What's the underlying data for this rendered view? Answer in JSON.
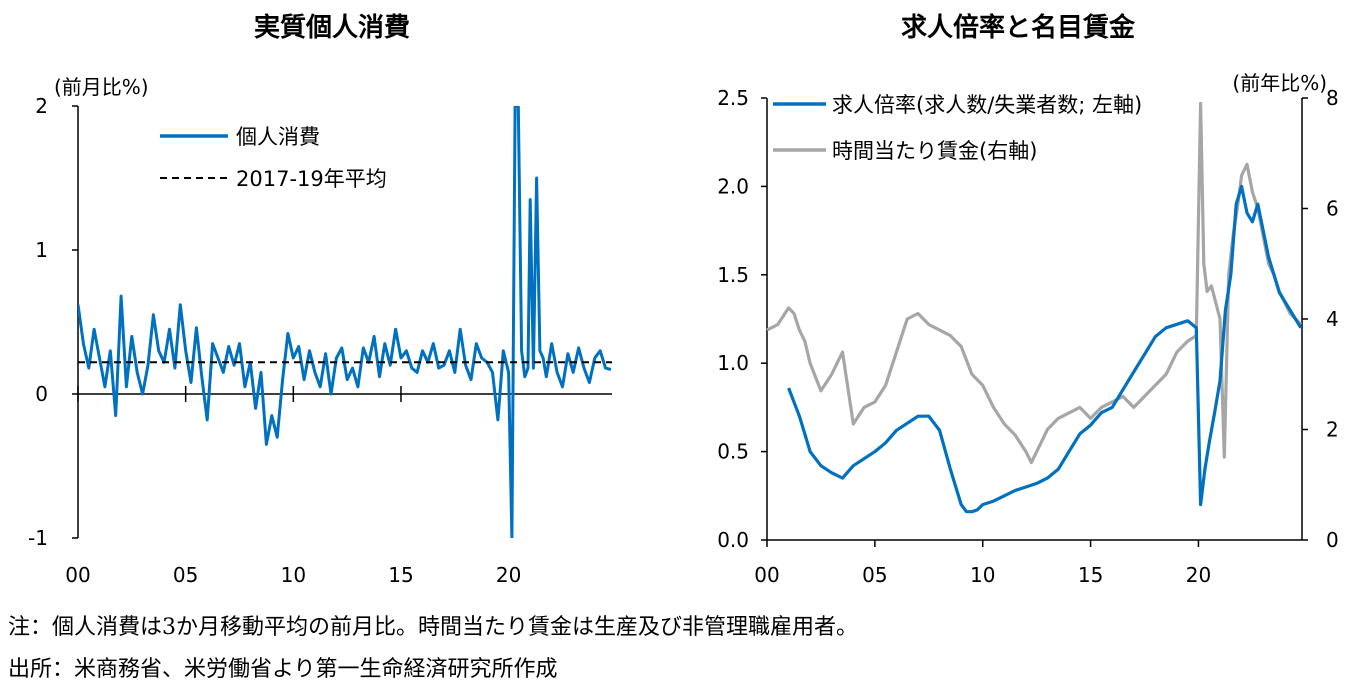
{
  "charts": [
    {
      "title": "実質個人消費",
      "ylabel": "(前月比%)",
      "yticks": [
        "2",
        "1",
        "0",
        "-1"
      ],
      "xticks": [
        "00",
        "05",
        "10",
        "15",
        "20"
      ]
    },
    {
      "title": "求人倍率と名目賃金",
      "ylabel_left": "",
      "ylabel_right": "(前年比%)",
      "yticks_left": [
        "2.5",
        "2.0",
        "1.5",
        "1.0",
        "0.5",
        "0.0"
      ],
      "yticks_right": [
        "8",
        "6",
        "4",
        "2",
        "0"
      ],
      "xticks": [
        "00",
        "05",
        "10",
        "15",
        "20"
      ]
    }
  ],
  "legend": {
    "consumption": "個人消費",
    "average": "2017-19年平均",
    "ratio": "求人倍率(求人数/失業者数; 左軸)",
    "wage": "時間当たり賃金(右軸)"
  },
  "notes": [
    "注：個人消費は3か月移動平均の前月比。時間当たり賃金は生産及び非管理職雇用者。",
    "出所：米商務省、米労働省より第一生命経済研究所作成"
  ],
  "colors": {
    "blue": "#0070C0",
    "gray": "#A6A6A6",
    "black": "#000000"
  },
  "chart_data": [
    {
      "type": "line",
      "title": "実質個人消費",
      "ylabel": "(前月比%)",
      "ylim": [
        -1,
        2
      ],
      "xlim": [
        2000,
        2024.8
      ],
      "series": [
        {
          "name": "個人消費",
          "color": "#0070C0",
          "x": [
            2000.0,
            2000.25,
            2000.5,
            2000.75,
            2001.0,
            2001.25,
            2001.5,
            2001.75,
            2002.0,
            2002.25,
            2002.5,
            2002.75,
            2003.0,
            2003.25,
            2003.5,
            2003.75,
            2004.0,
            2004.25,
            2004.5,
            2004.75,
            2005.0,
            2005.25,
            2005.5,
            2005.75,
            2006.0,
            2006.25,
            2006.5,
            2006.75,
            2007.0,
            2007.25,
            2007.5,
            2007.75,
            2008.0,
            2008.25,
            2008.5,
            2008.75,
            2009.0,
            2009.25,
            2009.5,
            2009.75,
            2010.0,
            2010.25,
            2010.5,
            2010.75,
            2011.0,
            2011.25,
            2011.5,
            2011.75,
            2012.0,
            2012.25,
            2012.5,
            2012.75,
            2013.0,
            2013.25,
            2013.5,
            2013.75,
            2014.0,
            2014.25,
            2014.5,
            2014.75,
            2015.0,
            2015.25,
            2015.5,
            2015.75,
            2016.0,
            2016.25,
            2016.5,
            2016.75,
            2017.0,
            2017.25,
            2017.5,
            2017.75,
            2018.0,
            2018.25,
            2018.5,
            2018.75,
            2019.0,
            2019.25,
            2019.5,
            2019.75,
            2020.0,
            2020.15,
            2020.3,
            2020.45,
            2020.6,
            2020.75,
            2020.9,
            2021.0,
            2021.15,
            2021.3,
            2021.45,
            2021.6,
            2021.75,
            2022.0,
            2022.25,
            2022.5,
            2022.75,
            2023.0,
            2023.25,
            2023.5,
            2023.75,
            2024.0,
            2024.25,
            2024.5,
            2024.75
          ],
          "y": [
            0.62,
            0.35,
            0.18,
            0.45,
            0.25,
            0.05,
            0.3,
            -0.15,
            0.68,
            0.05,
            0.4,
            0.15,
            0.0,
            0.2,
            0.55,
            0.3,
            0.22,
            0.45,
            0.18,
            0.62,
            0.3,
            0.08,
            0.46,
            0.12,
            -0.18,
            0.35,
            0.25,
            0.15,
            0.33,
            0.2,
            0.35,
            0.05,
            0.22,
            -0.1,
            0.15,
            -0.35,
            -0.15,
            -0.3,
            0.1,
            0.42,
            0.25,
            0.33,
            0.1,
            0.3,
            0.15,
            0.05,
            0.28,
            0.0,
            0.25,
            0.32,
            0.1,
            0.18,
            0.05,
            0.32,
            0.22,
            0.4,
            0.12,
            0.35,
            0.2,
            0.45,
            0.25,
            0.3,
            0.18,
            0.15,
            0.3,
            0.22,
            0.35,
            0.18,
            0.2,
            0.3,
            0.15,
            0.45,
            0.2,
            0.1,
            0.35,
            0.25,
            0.22,
            0.15,
            -0.18,
            0.3,
            0.15,
            -1.0,
            2.0,
            2.0,
            0.3,
            0.12,
            0.18,
            1.35,
            0.18,
            1.5,
            0.3,
            0.25,
            0.12,
            0.35,
            0.15,
            0.05,
            0.28,
            0.15,
            0.32,
            0.18,
            0.08,
            0.25,
            0.3,
            0.18,
            0.17
          ]
        },
        {
          "name": "2017-19年平均",
          "color": "#000000",
          "x": [
            2000.0,
            2024.8
          ],
          "y": [
            0.22,
            0.22
          ]
        }
      ]
    },
    {
      "type": "line",
      "title": "求人倍率と名目賃金",
      "ylabel_right": "(前年比%)",
      "ylim_left": [
        0,
        2.5
      ],
      "ylim_right": [
        0,
        8
      ],
      "xlim": [
        2000,
        2024.8
      ],
      "series": [
        {
          "name": "求人倍率(求人数/失業者数; 左軸)",
          "axis": "left",
          "color": "#0070C0",
          "x": [
            2001.0,
            2001.25,
            2001.5,
            2001.75,
            2002.0,
            2002.5,
            2003.0,
            2003.5,
            2004.0,
            2004.5,
            2005.0,
            2005.5,
            2006.0,
            2006.5,
            2007.0,
            2007.5,
            2008.0,
            2008.5,
            2009.0,
            2009.25,
            2009.5,
            2009.75,
            2010.0,
            2010.5,
            2011.0,
            2011.5,
            2012.0,
            2012.5,
            2013.0,
            2013.5,
            2014.0,
            2014.5,
            2015.0,
            2015.5,
            2016.0,
            2016.5,
            2017.0,
            2017.5,
            2018.0,
            2018.5,
            2019.0,
            2019.5,
            2019.9,
            2020.1,
            2020.3,
            2020.5,
            2020.75,
            2021.0,
            2021.25,
            2021.5,
            2021.75,
            2022.0,
            2022.25,
            2022.5,
            2022.75,
            2023.0,
            2023.25,
            2023.5,
            2023.75,
            2024.0,
            2024.25,
            2024.5,
            2024.75
          ],
          "y": [
            0.86,
            0.78,
            0.7,
            0.6,
            0.5,
            0.42,
            0.38,
            0.35,
            0.42,
            0.46,
            0.5,
            0.55,
            0.62,
            0.66,
            0.7,
            0.7,
            0.62,
            0.4,
            0.2,
            0.16,
            0.16,
            0.17,
            0.2,
            0.22,
            0.25,
            0.28,
            0.3,
            0.32,
            0.35,
            0.4,
            0.5,
            0.6,
            0.65,
            0.72,
            0.75,
            0.85,
            0.95,
            1.05,
            1.15,
            1.2,
            1.22,
            1.24,
            1.2,
            0.2,
            0.4,
            0.55,
            0.72,
            0.9,
            1.3,
            1.5,
            1.9,
            2.0,
            1.85,
            1.8,
            1.9,
            1.75,
            1.6,
            1.5,
            1.4,
            1.35,
            1.3,
            1.25,
            1.2
          ]
        },
        {
          "name": "時間当たり賃金(右軸)",
          "axis": "right",
          "color": "#A6A6A6",
          "x": [
            2000.0,
            2000.5,
            2001.0,
            2001.25,
            2001.5,
            2001.75,
            2002.0,
            2002.5,
            2003.0,
            2003.5,
            2004.0,
            2004.5,
            2005.0,
            2005.5,
            2006.0,
            2006.5,
            2007.0,
            2007.5,
            2008.0,
            2008.5,
            2009.0,
            2009.5,
            2010.0,
            2010.5,
            2011.0,
            2011.5,
            2012.0,
            2012.25,
            2012.5,
            2012.75,
            2013.0,
            2013.5,
            2014.0,
            2014.5,
            2015.0,
            2015.5,
            2016.0,
            2016.5,
            2017.0,
            2017.5,
            2018.0,
            2018.5,
            2019.0,
            2019.5,
            2019.9,
            2020.1,
            2020.25,
            2020.4,
            2020.6,
            2020.8,
            2021.0,
            2021.2,
            2021.4,
            2021.6,
            2021.8,
            2022.0,
            2022.25,
            2022.5,
            2022.75,
            2023.0,
            2023.25,
            2023.5,
            2023.75,
            2024.0,
            2024.25,
            2024.5,
            2024.75
          ],
          "y": [
            3.8,
            3.9,
            4.2,
            4.1,
            3.8,
            3.6,
            3.2,
            2.7,
            3.0,
            3.4,
            2.1,
            2.4,
            2.5,
            2.8,
            3.4,
            4.0,
            4.1,
            3.9,
            3.8,
            3.7,
            3.5,
            3.0,
            2.8,
            2.4,
            2.1,
            1.9,
            1.6,
            1.4,
            1.6,
            1.8,
            2.0,
            2.2,
            2.3,
            2.4,
            2.2,
            2.4,
            2.5,
            2.6,
            2.4,
            2.6,
            2.8,
            3.0,
            3.4,
            3.6,
            3.7,
            7.9,
            5.0,
            4.5,
            4.6,
            4.3,
            4.0,
            1.5,
            4.8,
            5.5,
            6.0,
            6.6,
            6.8,
            6.3,
            6.0,
            5.5,
            5.0,
            4.8,
            4.5,
            4.3,
            4.1,
            4.0,
            3.9
          ]
        }
      ]
    }
  ]
}
